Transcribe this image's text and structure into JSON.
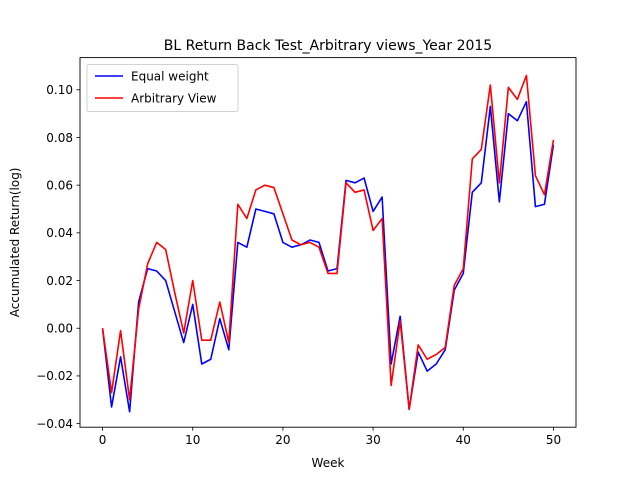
{
  "chart_data": {
    "type": "line",
    "title": "BL Return Back Test_Arbitrary views_Year 2015",
    "xlabel": "Week",
    "ylabel": "Accumulated Return(log)",
    "xlim": [
      -2.5,
      52.5
    ],
    "ylim": [
      -0.0415,
      0.1135
    ],
    "xticks": [
      0,
      10,
      20,
      30,
      40,
      50
    ],
    "xtick_labels": [
      "0",
      "10",
      "20",
      "30",
      "40",
      "50"
    ],
    "yticks": [
      -0.04,
      -0.02,
      0.0,
      0.02,
      0.04,
      0.06,
      0.08,
      0.1
    ],
    "ytick_labels": [
      "−0.04",
      "−0.02",
      "0.00",
      "0.02",
      "0.04",
      "0.06",
      "0.08",
      "0.10"
    ],
    "grid": false,
    "legend_position": "top-left",
    "x": [
      0,
      1,
      2,
      3,
      4,
      5,
      6,
      7,
      8,
      9,
      10,
      11,
      12,
      13,
      14,
      15,
      16,
      17,
      18,
      19,
      20,
      21,
      22,
      23,
      24,
      25,
      26,
      27,
      28,
      29,
      30,
      31,
      32,
      33,
      34,
      35,
      36,
      37,
      38,
      39,
      40,
      41,
      42,
      43,
      44,
      45,
      46,
      47,
      48,
      49,
      50
    ],
    "series": [
      {
        "name": "Equal weight",
        "color": "#0000ff",
        "values": [
          0.0,
          -0.033,
          -0.012,
          -0.035,
          0.011,
          0.025,
          0.024,
          0.02,
          0.007,
          -0.006,
          0.01,
          -0.015,
          -0.013,
          0.004,
          -0.009,
          0.036,
          0.034,
          0.05,
          0.049,
          0.048,
          0.036,
          0.034,
          0.035,
          0.037,
          0.036,
          0.024,
          0.025,
          0.062,
          0.061,
          0.063,
          0.049,
          0.055,
          -0.015,
          0.005,
          -0.034,
          -0.01,
          -0.018,
          -0.015,
          -0.009,
          0.016,
          0.023,
          0.057,
          0.061,
          0.093,
          0.053,
          0.09,
          0.087,
          0.095,
          0.051,
          0.052,
          0.077
        ]
      },
      {
        "name": "Arbitrary View",
        "color": "#ff0000",
        "values": [
          0.0,
          -0.027,
          -0.001,
          -0.03,
          0.008,
          0.027,
          0.036,
          0.033,
          0.015,
          -0.002,
          0.02,
          -0.005,
          -0.005,
          0.011,
          -0.006,
          0.052,
          0.046,
          0.058,
          0.06,
          0.059,
          0.048,
          0.037,
          0.035,
          0.036,
          0.034,
          0.023,
          0.023,
          0.061,
          0.057,
          0.058,
          0.041,
          0.046,
          -0.024,
          0.003,
          -0.034,
          -0.007,
          -0.013,
          -0.011,
          -0.008,
          0.018,
          0.025,
          0.071,
          0.075,
          0.102,
          0.061,
          0.101,
          0.096,
          0.106,
          0.064,
          0.056,
          0.079
        ]
      }
    ]
  }
}
